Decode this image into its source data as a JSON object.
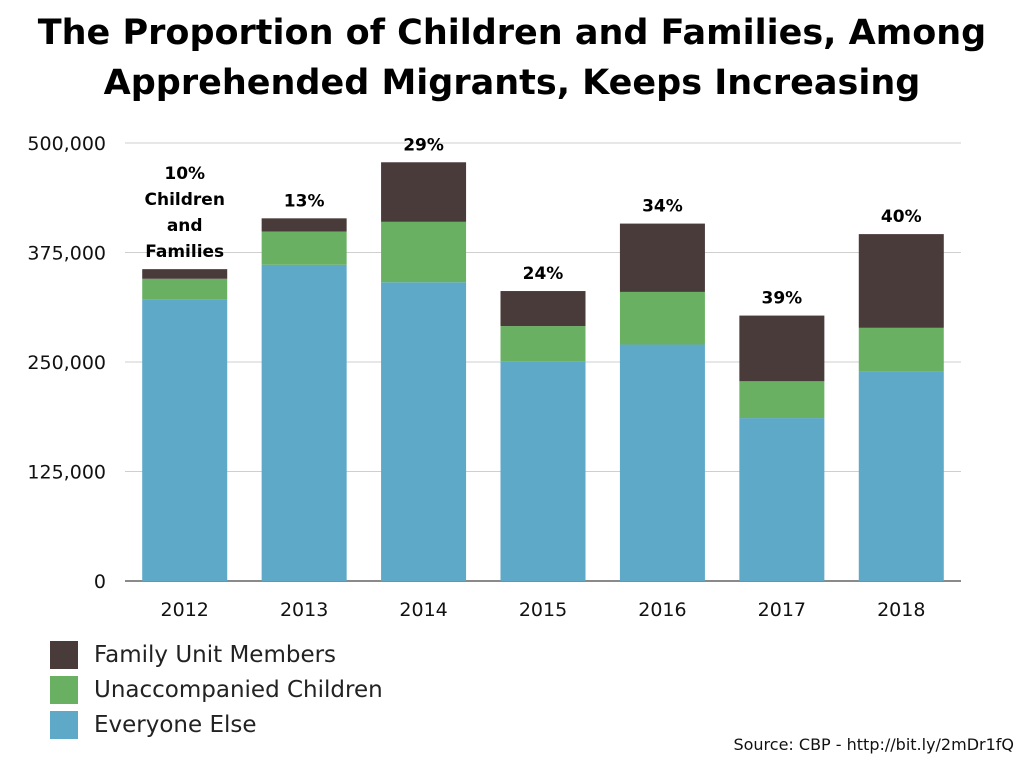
{
  "chart_data": {
    "type": "bar",
    "stacked": true,
    "title_lines": [
      "The Proportion of Children and Families, Among",
      "Apprehended Migrants, Keeps Increasing"
    ],
    "xlabel": "",
    "ylabel": "",
    "ylim": [
      0,
      500000
    ],
    "yticks": [
      {
        "value": 0,
        "label": "0"
      },
      {
        "value": 125000,
        "label": "125,000"
      },
      {
        "value": 250000,
        "label": "250,000"
      },
      {
        "value": 375000,
        "label": "375,000"
      },
      {
        "value": 500000,
        "label": "500,000"
      }
    ],
    "grid": true,
    "legend_position": "bottom-left",
    "categories": [
      "2012",
      "2013",
      "2014",
      "2015",
      "2016",
      "2017",
      "2018"
    ],
    "series": [
      {
        "name": "Everyone Else",
        "color": "#5ea8c8",
        "values": [
          321000,
          361000,
          341000,
          251000,
          270000,
          186000,
          239000
        ]
      },
      {
        "name": "Unaccompanied Children",
        "color": "#6ab063",
        "values": [
          24000,
          38000,
          69000,
          40000,
          60000,
          42000,
          50000
        ]
      },
      {
        "name": "Family Unit Members",
        "color": "#483b3a",
        "values": [
          11000,
          15000,
          68000,
          40000,
          78000,
          75000,
          107000
        ]
      }
    ],
    "bar_labels": [
      [
        "10%",
        "Children",
        "and",
        "Families"
      ],
      [
        "13%"
      ],
      [
        "29%"
      ],
      [
        "24%"
      ],
      [
        "34%"
      ],
      [
        "39%"
      ],
      [
        "40%"
      ]
    ],
    "legend_order": [
      "Family Unit Members",
      "Unaccompanied Children",
      "Everyone Else"
    ],
    "source": "Source: CBP - http://bit.ly/2mDr1fQ"
  }
}
